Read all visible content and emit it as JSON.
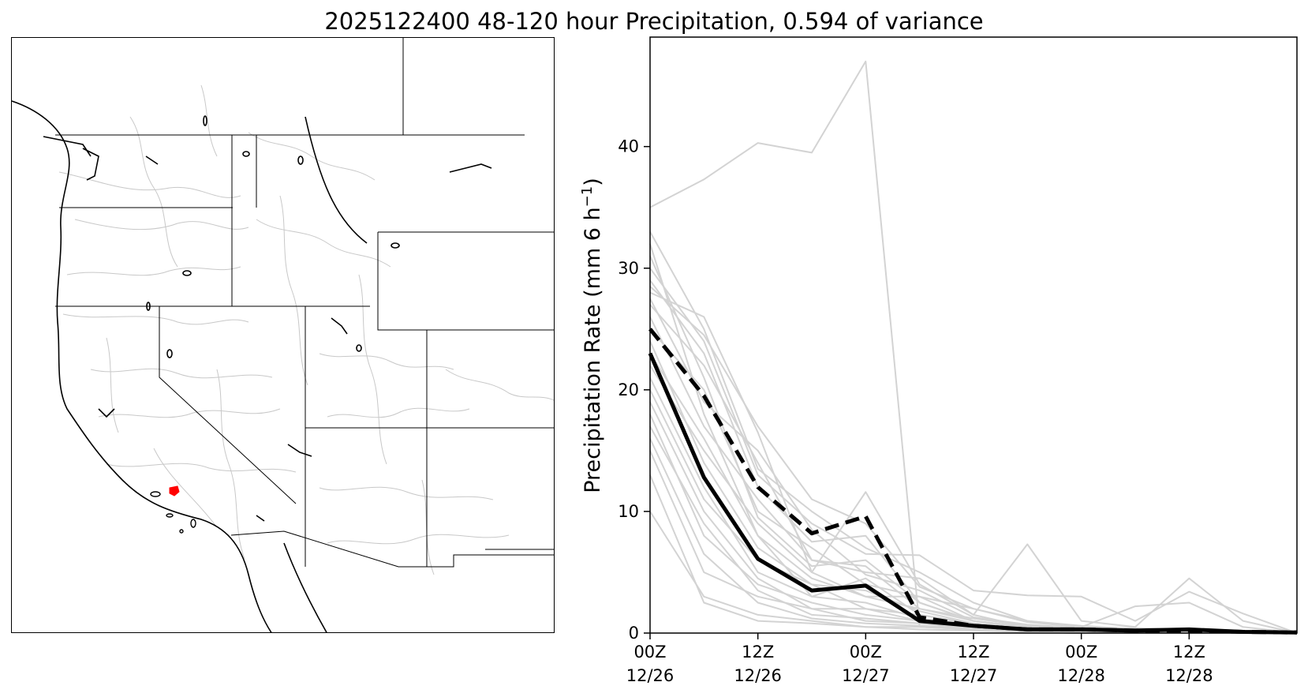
{
  "figure": {
    "title": "2025122400 48-120 hour Precipitation, 0.594 of variance"
  },
  "map": {
    "highlight_color": "#ff0000",
    "basin_color": "#c8c8c8",
    "boundary_color": "#000000"
  },
  "chart_data": {
    "type": "line",
    "ylabel": "Precipitation Rate (mm 6 h",
    "ylabel_sup": "−1",
    "ylabel_close": ")",
    "ylim": [
      0,
      49
    ],
    "x_hours": [
      0,
      6,
      12,
      18,
      24,
      30,
      36,
      42,
      48,
      54,
      60,
      66,
      72
    ],
    "xlim": [
      0,
      72
    ],
    "x_ticks": [
      {
        "hour": 0,
        "line1": "00Z",
        "line2": "12/26"
      },
      {
        "hour": 12,
        "line1": "12Z",
        "line2": "12/26"
      },
      {
        "hour": 24,
        "line1": "00Z",
        "line2": "12/27"
      },
      {
        "hour": 36,
        "line1": "12Z",
        "line2": "12/27"
      },
      {
        "hour": 48,
        "line1": "00Z",
        "line2": "12/28"
      },
      {
        "hour": 60,
        "line1": "12Z",
        "line2": "12/28"
      }
    ],
    "y_ticks": [
      0,
      10,
      20,
      30,
      40
    ],
    "grid": false,
    "series": [
      {
        "role": "mean",
        "color": "#000000",
        "style": "solid",
        "values": [
          23.0,
          12.8,
          6.1,
          3.5,
          3.9,
          1.0,
          0.6,
          0.3,
          0.3,
          0.2,
          0.3,
          0.1,
          0.05
        ]
      },
      {
        "role": "upper",
        "color": "#000000",
        "style": "dashed",
        "values": [
          25.0,
          19.5,
          12.0,
          8.2,
          9.6,
          1.3,
          0.6,
          0.3,
          0.3,
          0.2,
          0.2,
          0.1,
          0.05
        ]
      },
      {
        "role": "member",
        "color": "#d3d3d3",
        "style": "solid",
        "values": [
          35.0,
          37.3,
          40.3,
          39.5,
          47.0,
          0.5,
          0.3,
          0.2,
          0.1,
          0.1,
          0.1,
          0.1,
          0.0
        ]
      },
      {
        "role": "member",
        "color": "#d3d3d3",
        "style": "solid",
        "values": [
          28.0,
          26.0,
          16.5,
          5.0,
          11.6,
          4.0,
          1.5,
          7.3,
          1.0,
          0.5,
          4.5,
          1.0,
          0.0
        ]
      },
      {
        "role": "member",
        "color": "#d3d3d3",
        "style": "solid",
        "values": [
          30.0,
          24.0,
          13.0,
          9.0,
          6.5,
          6.4,
          3.5,
          3.1,
          3.0,
          1.0,
          3.4,
          1.6,
          0.0
        ]
      },
      {
        "role": "member",
        "color": "#d3d3d3",
        "style": "solid",
        "values": [
          32.0,
          18.0,
          8.0,
          4.5,
          3.0,
          3.0,
          2.0,
          1.0,
          0.5,
          2.2,
          2.5,
          0.5,
          0.0
        ]
      },
      {
        "role": "member",
        "color": "#d3d3d3",
        "style": "solid",
        "values": [
          27.0,
          22.0,
          14.0,
          6.0,
          5.0,
          4.5,
          1.5,
          0.5,
          0.3,
          0.3,
          0.2,
          0.1,
          0.0
        ]
      },
      {
        "role": "member",
        "color": "#d3d3d3",
        "style": "solid",
        "values": [
          25.0,
          20.0,
          10.0,
          7.0,
          4.0,
          3.0,
          1.0,
          0.5,
          0.3,
          0.2,
          0.1,
          0.1,
          0.0
        ]
      },
      {
        "role": "member",
        "color": "#d3d3d3",
        "style": "solid",
        "values": [
          22.0,
          15.0,
          9.0,
          5.0,
          3.0,
          2.0,
          1.0,
          0.5,
          0.2,
          0.1,
          0.1,
          0.0,
          0.0
        ]
      },
      {
        "role": "member",
        "color": "#d3d3d3",
        "style": "solid",
        "values": [
          20.0,
          11.0,
          6.0,
          4.0,
          2.0,
          1.5,
          0.8,
          0.4,
          0.2,
          0.1,
          0.1,
          0.0,
          0.0
        ]
      },
      {
        "role": "member",
        "color": "#d3d3d3",
        "style": "solid",
        "values": [
          18.0,
          8.0,
          4.0,
          2.5,
          1.5,
          1.0,
          0.5,
          0.3,
          0.1,
          0.1,
          0.0,
          0.0,
          0.0
        ]
      },
      {
        "role": "member",
        "color": "#d3d3d3",
        "style": "solid",
        "values": [
          15.0,
          5.0,
          3.0,
          2.0,
          1.0,
          0.8,
          0.4,
          0.2,
          0.1,
          0.0,
          0.0,
          0.0,
          0.0
        ]
      },
      {
        "role": "member",
        "color": "#d3d3d3",
        "style": "solid",
        "values": [
          10.0,
          3.0,
          1.5,
          1.0,
          0.5,
          0.5,
          0.3,
          0.1,
          0.0,
          0.0,
          0.0,
          0.0,
          0.0
        ]
      },
      {
        "role": "member",
        "color": "#d3d3d3",
        "style": "solid",
        "values": [
          13.0,
          2.5,
          1.0,
          0.8,
          0.5,
          0.3,
          0.2,
          0.1,
          0.0,
          0.0,
          0.0,
          0.0,
          0.0
        ]
      },
      {
        "role": "member",
        "color": "#d3d3d3",
        "style": "solid",
        "values": [
          29.0,
          23.0,
          12.0,
          7.5,
          8.0,
          2.5,
          1.0,
          0.5,
          0.3,
          0.2,
          0.1,
          0.1,
          0.0
        ]
      },
      {
        "role": "member",
        "color": "#d3d3d3",
        "style": "solid",
        "values": [
          26.0,
          17.0,
          11.0,
          6.0,
          5.5,
          2.0,
          1.2,
          0.6,
          0.4,
          0.2,
          0.1,
          0.1,
          0.0
        ]
      },
      {
        "role": "member",
        "color": "#d3d3d3",
        "style": "solid",
        "values": [
          24.0,
          14.0,
          7.0,
          4.0,
          3.5,
          1.8,
          0.8,
          0.4,
          0.2,
          0.1,
          0.1,
          0.0,
          0.0
        ]
      },
      {
        "role": "member",
        "color": "#d3d3d3",
        "style": "solid",
        "values": [
          21.0,
          12.0,
          5.0,
          3.0,
          2.5,
          1.2,
          0.6,
          0.3,
          0.2,
          0.1,
          0.0,
          0.0,
          0.0
        ]
      },
      {
        "role": "member",
        "color": "#d3d3d3",
        "style": "solid",
        "values": [
          19.0,
          10.0,
          4.5,
          2.0,
          2.0,
          1.0,
          0.5,
          0.2,
          0.1,
          0.0,
          0.0,
          0.0,
          0.0
        ]
      },
      {
        "role": "member",
        "color": "#d3d3d3",
        "style": "solid",
        "values": [
          17.0,
          9.0,
          3.5,
          1.5,
          1.2,
          0.8,
          0.3,
          0.2,
          0.1,
          0.0,
          0.0,
          0.0,
          0.0
        ]
      },
      {
        "role": "member",
        "color": "#d3d3d3",
        "style": "solid",
        "values": [
          23.0,
          16.0,
          8.0,
          3.0,
          4.5,
          1.5,
          0.7,
          0.3,
          0.2,
          0.1,
          0.0,
          0.0,
          0.0
        ]
      },
      {
        "role": "member",
        "color": "#d3d3d3",
        "style": "solid",
        "values": [
          31.0,
          21.0,
          9.5,
          5.5,
          6.0,
          2.5,
          1.0,
          0.4,
          0.3,
          0.1,
          0.1,
          0.0,
          0.0
        ]
      },
      {
        "role": "member",
        "color": "#d3d3d3",
        "style": "solid",
        "values": [
          27.5,
          19.0,
          15.0,
          8.5,
          4.8,
          3.5,
          1.3,
          0.7,
          0.4,
          0.3,
          0.2,
          0.1,
          0.0
        ]
      },
      {
        "role": "member",
        "color": "#d3d3d3",
        "style": "solid",
        "values": [
          16.0,
          6.5,
          2.5,
          1.2,
          0.8,
          0.6,
          0.3,
          0.1,
          0.0,
          0.0,
          0.0,
          0.0,
          0.0
        ]
      },
      {
        "role": "member",
        "color": "#d3d3d3",
        "style": "solid",
        "values": [
          33.0,
          25.0,
          13.5,
          10.0,
          7.0,
          5.0,
          2.5,
          1.0,
          0.6,
          0.3,
          0.2,
          0.1,
          0.0
        ]
      },
      {
        "role": "member",
        "color": "#d3d3d3",
        "style": "solid",
        "values": [
          28.5,
          24.5,
          17.0,
          11.0,
          9.0,
          3.8,
          2.0,
          0.9,
          0.5,
          0.4,
          0.3,
          0.2,
          0.0
        ]
      }
    ]
  }
}
